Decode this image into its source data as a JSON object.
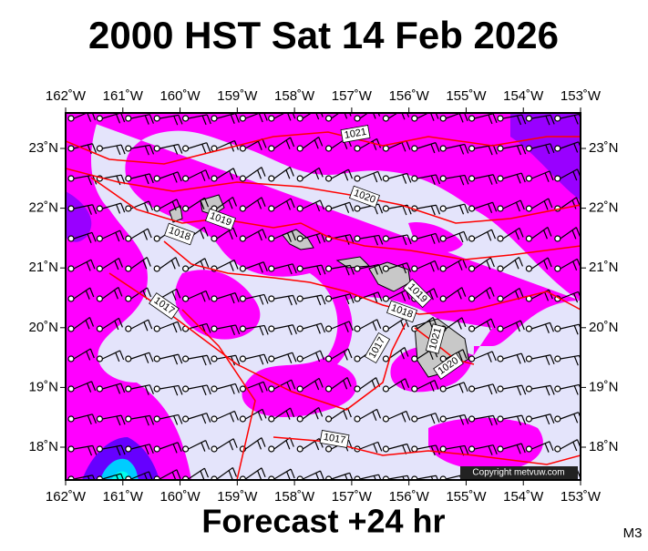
{
  "title": "2000 HST Sat 14 Feb 2026",
  "footer": "Forecast +24 hr",
  "model": "M3",
  "copyright": "Copyright metvuw.com",
  "longitudes": [
    "162˚W",
    "161˚W",
    "160˚W",
    "159˚W",
    "158˚W",
    "157˚W",
    "156˚W",
    "155˚W",
    "154˚W",
    "153˚W"
  ],
  "latitudes": [
    "23˚N",
    "22˚N",
    "21˚N",
    "20˚N",
    "19˚N",
    "18˚N"
  ],
  "isobar_labels": [
    "1021",
    "1020",
    "1019",
    "1018",
    "1017",
    "1019",
    "1018",
    "1017",
    "1021",
    "1020",
    "1017"
  ]
}
